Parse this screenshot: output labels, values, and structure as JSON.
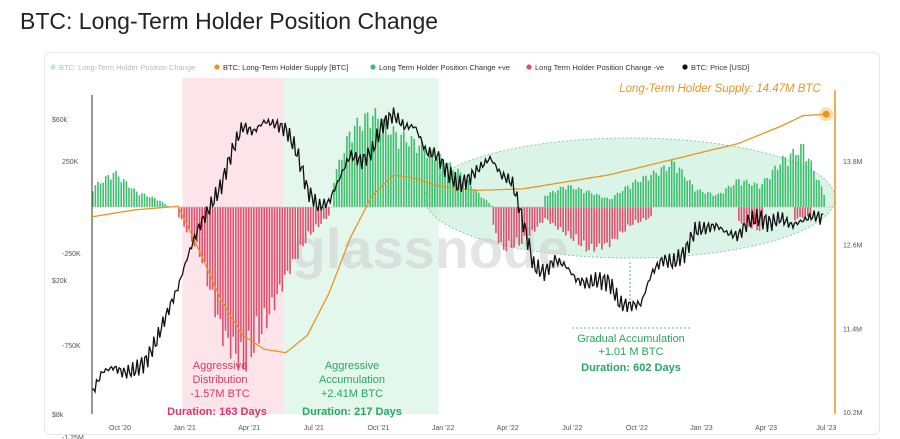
{
  "chart_data": {
    "type": "line",
    "title": "BTC: Long-Term Holder Position Change",
    "legend": [
      {
        "label": "BTC: Long-Term Holder Position Change",
        "color": "#58c87a",
        "faded": true
      },
      {
        "label": "BTC: Long-Term Holder Supply [BTC]",
        "color": "#e8961e",
        "faded": false
      },
      {
        "label": "Long Term Holder Position Change +ve",
        "color": "#3fbf6e",
        "faded": false
      },
      {
        "label": "Long Term Holder Position Change -ve",
        "color": "#e0506e",
        "faded": false
      },
      {
        "label": "BTC: Price [USD]",
        "color": "#111111",
        "faded": false
      }
    ],
    "x_axis": {
      "ticks": [
        "Oct '20",
        "Jan '21",
        "Apr '21",
        "Jul '21",
        "Oct '21",
        "Jan '22",
        "Apr '22",
        "Jul '22",
        "Oct '22",
        "Jan '23",
        "Apr '23",
        "Jul '23"
      ]
    },
    "y_left_price": {
      "ticks": [
        "$60k",
        "$20k",
        "$8k"
      ],
      "values": [
        60000,
        20000,
        8000
      ],
      "scale": "log"
    },
    "y_left_change": {
      "ticks": [
        "250K",
        "-250K",
        "-750K",
        "-1.25M"
      ],
      "values": [
        250000,
        -250000,
        -750000,
        -1250000
      ],
      "range": [
        -1250000,
        500000
      ]
    },
    "y_right_supply": {
      "ticks": [
        "13.8M",
        "12.6M",
        "11.4M",
        "10.2M"
      ],
      "values": [
        13.8,
        12.6,
        11.4,
        10.2
      ],
      "range": [
        10.2,
        14.7
      ]
    },
    "x_range_months": [
      0,
      34.5
    ],
    "series": [
      {
        "name": "BTC: Price [USD]",
        "x": [
          0,
          0.5,
          1,
          1.5,
          2,
          2.5,
          3,
          3.5,
          4,
          4.5,
          5,
          5.5,
          6,
          6.5,
          7,
          7.5,
          8,
          8.5,
          9,
          9.5,
          10,
          10.5,
          11,
          11.5,
          12,
          12.5,
          13,
          13.5,
          14,
          14.5,
          15,
          15.5,
          16,
          16.5,
          17,
          17.5,
          18,
          18.5,
          19,
          19.5,
          20,
          20.5,
          21,
          21.5,
          22,
          22.5,
          23,
          23.5,
          24,
          24.5,
          25,
          25.5,
          26,
          26.5,
          27,
          27.5,
          28,
          28.5,
          29,
          29.5,
          30,
          30.5,
          31,
          31.5,
          32,
          32.5,
          33,
          33.5,
          34
        ],
        "values": [
          9200,
          10700,
          11000,
          10600,
          10800,
          11500,
          13200,
          16000,
          19000,
          24000,
          29000,
          33000,
          38000,
          48000,
          57000,
          55000,
          59000,
          58000,
          56000,
          48000,
          37000,
          33000,
          34000,
          40000,
          47000,
          45000,
          48000,
          58000,
          62000,
          57000,
          57000,
          48000,
          47000,
          42000,
          38000,
          40000,
          43000,
          46000,
          41000,
          39000,
          30000,
          22000,
          21000,
          23000,
          22000,
          20000,
          19500,
          20000,
          19800,
          17000,
          16800,
          17000,
          21000,
          23000,
          22500,
          24000,
          28000,
          28500,
          29000,
          27500,
          27000,
          30000,
          30500,
          29500,
          30500,
          29000,
          30000,
          31000,
          30500
        ]
      },
      {
        "name": "BTC: Long-Term Holder Supply [BTC]",
        "x": [
          0,
          2,
          4,
          5,
          6,
          7,
          8,
          9,
          10,
          11,
          12,
          13,
          14,
          15,
          16,
          17,
          18,
          20,
          22,
          24,
          26,
          28,
          30,
          32,
          33,
          34
        ],
        "values": [
          13.0,
          13.1,
          13.15,
          12.5,
          11.8,
          11.3,
          11.1,
          11.05,
          11.3,
          11.9,
          12.7,
          13.3,
          13.6,
          13.55,
          13.45,
          13.4,
          13.38,
          13.4,
          13.5,
          13.6,
          13.75,
          13.9,
          14.05,
          14.3,
          14.45,
          14.47
        ]
      },
      {
        "name": "Long Term Holder Position Change +ve",
        "x": [
          0,
          1,
          2,
          3,
          3.6,
          11.2,
          12,
          13,
          14,
          15,
          16,
          17,
          18,
          18.6,
          21,
          22,
          23,
          24,
          25,
          26,
          27,
          28,
          29,
          30,
          31,
          32,
          33,
          34
        ],
        "values": [
          100000,
          180000,
          80000,
          40000,
          0,
          150000,
          400000,
          480000,
          380000,
          330000,
          260000,
          180000,
          60000,
          0,
          60000,
          110000,
          80000,
          40000,
          120000,
          170000,
          230000,
          90000,
          60000,
          140000,
          110000,
          240000,
          310000,
          60000
        ]
      },
      {
        "name": "Long Term Holder Position Change -ve",
        "x": [
          4,
          5,
          6,
          7,
          8,
          9,
          10,
          11,
          18.6,
          19,
          20,
          21,
          22,
          23,
          24,
          25,
          26,
          30,
          31,
          33
        ],
        "values": [
          -50000,
          -250000,
          -650000,
          -820000,
          -600000,
          -350000,
          -150000,
          -40000,
          -100000,
          -220000,
          -180000,
          -60000,
          -140000,
          -220000,
          -190000,
          -90000,
          -50000,
          -80000,
          -120000,
          -50000
        ]
      }
    ],
    "annotations": {
      "supply_label": "Long-Term Holder Supply: 14.47M BTC",
      "distribution": {
        "line1": "Aggressive",
        "line2": "Distribution",
        "line3": "-1.57M BTC",
        "duration": "Duration: 163 Days",
        "x_range_months": [
          4.2,
          8.9
        ]
      },
      "accumulation": {
        "line1": "Aggressive",
        "line2": "Accumulation",
        "line3": "+2.41M BTC",
        "duration": "Duration: 217 Days",
        "x_range_months": [
          8.9,
          16.1
        ]
      },
      "gradual": {
        "line1": "Gradual Accumulation",
        "line2": "+1.01 M BTC",
        "duration": "Duration: 602 Days"
      },
      "watermark": "glassnode"
    },
    "colors": {
      "distribution_band": "#fde4ea",
      "accumulation_band": "#e3f7ec",
      "ellipse": "#c9efdc",
      "orange": "#e8961e",
      "green": "#3fbf6e",
      "red": "#e0506e",
      "pink_text": "#d63a6a",
      "green_text": "#2aa661"
    }
  }
}
